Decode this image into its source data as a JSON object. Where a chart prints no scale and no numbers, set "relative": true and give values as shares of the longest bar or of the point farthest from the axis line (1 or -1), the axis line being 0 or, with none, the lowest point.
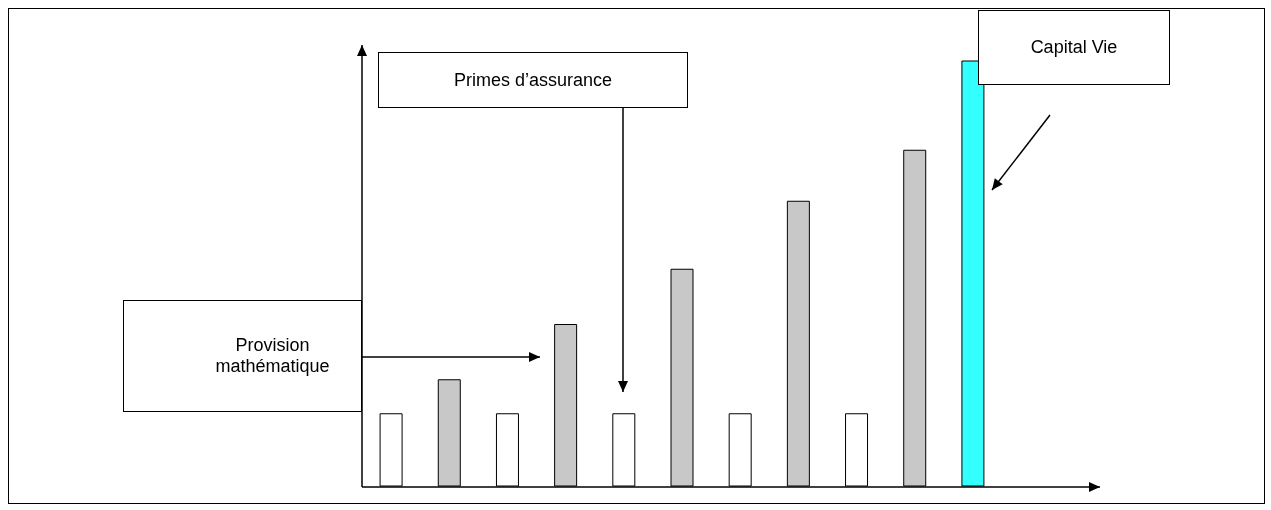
{
  "chart_data": {
    "type": "bar",
    "relative": true,
    "categories": [
      null,
      null,
      null,
      null,
      null,
      null,
      null,
      null,
      null,
      null,
      null
    ],
    "values": [
      0.17,
      0.25,
      0.17,
      0.38,
      0.17,
      0.51,
      0.17,
      0.67,
      0.17,
      0.79,
      1
    ],
    "colors": [
      "#ffffff",
      "#c8c8c8",
      "#ffffff",
      "#c8c8c8",
      "#ffffff",
      "#c8c8c8",
      "#ffffff",
      "#c8c8c8",
      "#ffffff",
      "#c8c8c8",
      "#33ffff"
    ],
    "annotations": [
      "Primes d’assurance",
      "Provision mathématique",
      "Capital Vie"
    ]
  }
}
